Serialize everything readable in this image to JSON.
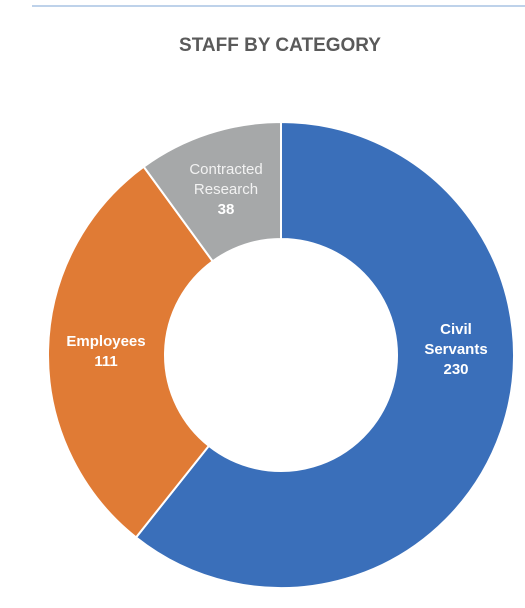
{
  "chart_data": {
    "type": "pie",
    "donut": true,
    "title": "STAFF BY CATEGORY",
    "categories": [
      "Civil Servants",
      "Employees",
      "Contracted Research"
    ],
    "values": [
      230,
      111,
      38
    ],
    "colors": [
      "#3a6fba",
      "#e07b35",
      "#a6a8a9"
    ]
  }
}
